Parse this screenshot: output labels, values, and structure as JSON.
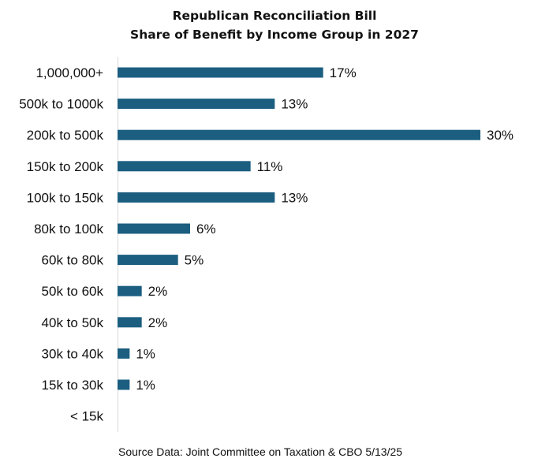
{
  "chart_data": {
    "type": "bar",
    "orientation": "horizontal",
    "title": "Republican Reconciliation Bill",
    "subtitle": "Share of Benefit by Income Group in 2027",
    "categories": [
      "1,000,000+",
      "500k to 1000k",
      "200k to 500k",
      "150k to 200k",
      "100k to 150k",
      "80k to 100k",
      "60k to 80k",
      "50k to 60k",
      "40k to 50k",
      "30k to 40k",
      "15k to 30k",
      "< 15k"
    ],
    "values": [
      17,
      13,
      30,
      11,
      13,
      6,
      5,
      2,
      2,
      1,
      1,
      0
    ],
    "data_labels": [
      "17%",
      "13%",
      "30%",
      "11%",
      "13%",
      "6%",
      "5%",
      "2%",
      "2%",
      "1%",
      "1%",
      ""
    ],
    "unit": "%",
    "xlim": [
      0,
      30
    ],
    "xlabel": "",
    "ylabel": "",
    "grid": false,
    "bar_color": "#1b5e80"
  },
  "footer": {
    "source": "Source Data:  Joint Committee on Taxation & CBO  5/13/25"
  }
}
